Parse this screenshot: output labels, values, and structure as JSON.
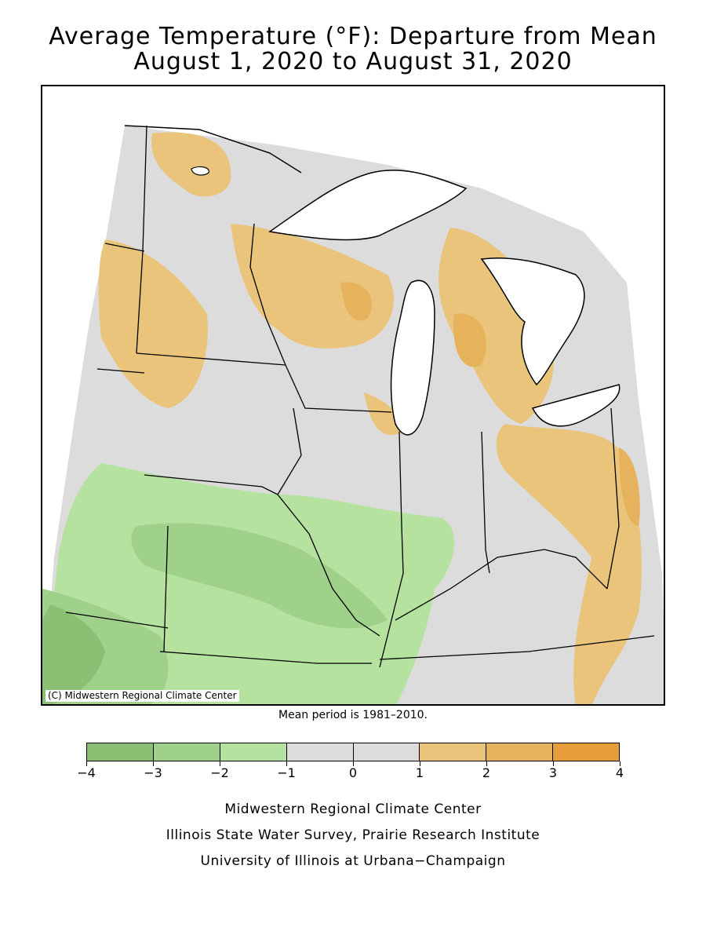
{
  "title_line1": "Average Temperature (°F): Departure from Mean",
  "title_line2": "August 1, 2020 to August 31, 2020",
  "copyright": "(C) Midwestern Regional Climate Center",
  "mean_period_note": "Mean period is 1981–2010.",
  "legend": {
    "bins": [
      {
        "from": -4,
        "to": -3,
        "color": "#8bbf74"
      },
      {
        "from": -3,
        "to": -2,
        "color": "#9fd18b"
      },
      {
        "from": -2,
        "to": -1,
        "color": "#b6e2a0"
      },
      {
        "from": -1,
        "to": 0,
        "color": "#dcdcdc"
      },
      {
        "from": 0,
        "to": 1,
        "color": "#dcdcdc"
      },
      {
        "from": 1,
        "to": 2,
        "color": "#e9c47a"
      },
      {
        "from": 2,
        "to": 3,
        "color": "#e6b25c"
      },
      {
        "from": 3,
        "to": 4,
        "color": "#e89e3a"
      }
    ],
    "tick_labels": [
      "−4",
      "−3",
      "−2",
      "−1",
      "0",
      "1",
      "2",
      "3",
      "4"
    ]
  },
  "credits": {
    "line1": "Midwestern Regional Climate Center",
    "line2": "Illinois State Water Survey, Prairie Research Institute",
    "line3": "University of Illinois at Urbana−Champaign"
  },
  "colors": {
    "neutral": "#dcdcdc",
    "cool_1": "#b6e2a0",
    "cool_2": "#9fd18b",
    "cool_3": "#8bbf74",
    "warm_1": "#e9c47a",
    "warm_2": "#e6b25c",
    "warm_3": "#e89e3a",
    "water": "#ffffff",
    "outline": "#000000"
  }
}
